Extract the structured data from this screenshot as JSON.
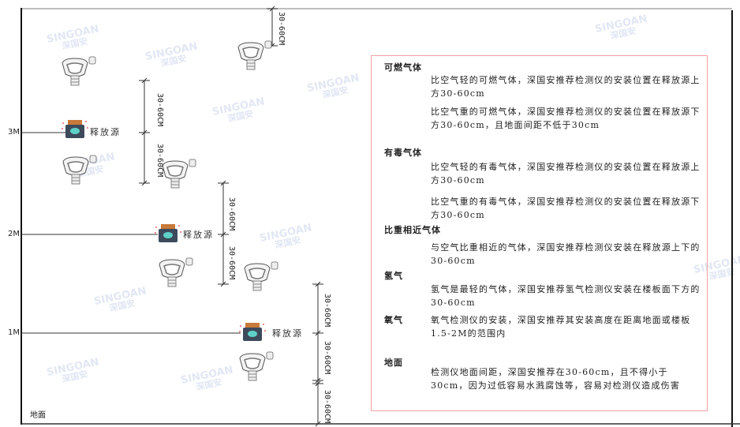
{
  "watermark": {
    "brand": "SINGOAN",
    "cn": "深国安"
  },
  "levels": [
    {
      "label": "3M"
    },
    {
      "label": "2M"
    },
    {
      "label": "1M"
    }
  ],
  "floor_label": "地面",
  "release_source_label": "释放源",
  "dimension_label": "30-60CM",
  "info": {
    "sections": [
      {
        "heading": "可燃气体",
        "paras": [
          "比空气轻的可燃气体，深国安推荐检测仪的安装位置在释放源上方30-60cm",
          "比空气重的可燃气体，深国安推荐检测仪的安装位置在释放源下方30-60cm，且地面间距不低于30cm"
        ]
      },
      {
        "heading": "有毒气体",
        "paras": [
          "比空气轻的有毒气体，深国安推荐检测仪的安装位置在释放源上方30-60cm",
          "比空气重的有毒气体，深国安推荐检测仪的安装位置在释放源下方30-60cm"
        ]
      },
      {
        "heading": "比重相近气体",
        "paras": [
          "与空气比重相近的气体，深国安推荐检测仪安装在释放源上下的30-60cm"
        ]
      },
      {
        "heading": "氢气",
        "paras": [
          "氢气是最轻的气体，深国安推荐氢气检测仪安装在楼板面下方的30-60cm"
        ]
      },
      {
        "heading": "氧气",
        "paras": [
          "氧气检测仪的安装，深国安推荐其安装高度在距离地面或楼板1.5-2M的范围内"
        ]
      },
      {
        "heading": "地面",
        "paras": [
          "检测仪地面间距，深国安推荐在30-60cm，且不得小于30cm，因为过低容易水溅腐蚀等，容易对检测仪造成伤害"
        ]
      }
    ]
  },
  "colors": {
    "border": "#f2a0a4",
    "source_body": "#3d4a5c",
    "source_cap": "#c8793a",
    "source_face": "#5fd0c8"
  }
}
